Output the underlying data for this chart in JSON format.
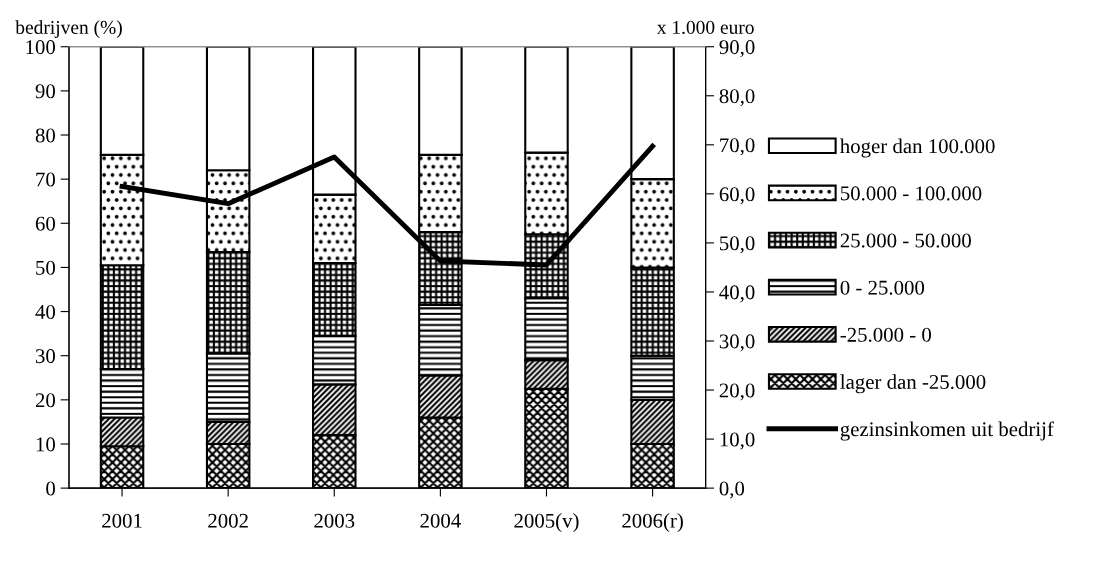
{
  "chart_data": {
    "type": "bar",
    "stacked": true,
    "ylabel": "bedrijven (%)",
    "y2label": "x 1.000 euro",
    "categories": [
      "2001",
      "2002",
      "2003",
      "2004",
      "2005(v)",
      "2006(r)"
    ],
    "series": [
      {
        "name": "lager dan -25.000",
        "color": "#000000",
        "values": [
          9.5,
          10,
          12,
          16,
          22.5,
          10
        ]
      },
      {
        "name": "-25.000 - 0",
        "color": "#000000",
        "values": [
          6.5,
          5,
          11.5,
          9.5,
          6.5,
          10
        ]
      },
      {
        "name": "0 - 25.000",
        "color": "#000000",
        "values": [
          11,
          15.5,
          11,
          16,
          14,
          10
        ]
      },
      {
        "name": "25.000 - 50.000",
        "color": "#000000",
        "values": [
          23.5,
          23,
          16.5,
          16.5,
          14.5,
          20
        ]
      },
      {
        "name": "50.000 - 100.000",
        "color": "#000000",
        "values": [
          25,
          18.5,
          15.5,
          17.5,
          18.5,
          20
        ]
      },
      {
        "name": "hoger dan 100.000",
        "color": "#ffffff",
        "values": [
          24.5,
          28,
          33.5,
          24.5,
          24,
          30
        ]
      },
      {
        "name": "gezinsinkomen uit bedrijf",
        "type": "line",
        "axis": "y2",
        "color": "#000000",
        "values": [
          61.5,
          58,
          67.5,
          46.3,
          45.5,
          69.7
        ]
      }
    ],
    "ylim": [
      0,
      100
    ],
    "yticks": [
      0,
      10,
      20,
      30,
      40,
      50,
      60,
      70,
      80,
      90,
      100
    ],
    "y2lim": [
      0,
      90
    ],
    "y2ticks": [
      {
        "value": 0,
        "label": "0,0"
      },
      {
        "value": 10,
        "label": "10,0"
      },
      {
        "value": 20,
        "label": "20,0"
      },
      {
        "value": 30,
        "label": "30,0"
      },
      {
        "value": 40,
        "label": "40,0"
      },
      {
        "value": 50,
        "label": "50,0"
      },
      {
        "value": 60,
        "label": "60,0"
      },
      {
        "value": 70,
        "label": "70,0"
      },
      {
        "value": 80,
        "label": "80,0"
      },
      {
        "value": 90,
        "label": "90,0"
      }
    ],
    "grid": false,
    "legend": "right",
    "marker": "none",
    "line_style": "solid"
  }
}
